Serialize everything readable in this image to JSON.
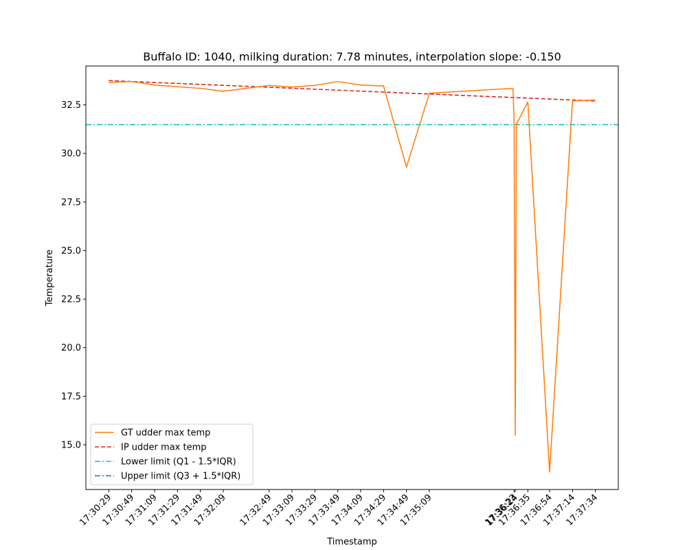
{
  "chart_data": {
    "type": "line",
    "title": "Buffalo ID: 1040, milking duration: 7.78 minutes, interpolation slope: -0.150",
    "xlabel": "Timestamp",
    "ylabel": "Temperature",
    "ylim": [
      12.7,
      34.5
    ],
    "y_ticks": [
      "15.0",
      "17.5",
      "20.0",
      "22.5",
      "25.0",
      "27.5",
      "30.0",
      "32.5"
    ],
    "x_ticks": [
      {
        "t": 0,
        "label": "17:30:29"
      },
      {
        "t": 20,
        "label": "17:30:49"
      },
      {
        "t": 40,
        "label": "17:31:09"
      },
      {
        "t": 60,
        "label": "17:31:29"
      },
      {
        "t": 80,
        "label": "17:31:49"
      },
      {
        "t": 100,
        "label": "17:32:09"
      },
      {
        "t": 140,
        "label": "17:32:49"
      },
      {
        "t": 160,
        "label": "17:33:09"
      },
      {
        "t": 180,
        "label": "17:33:29"
      },
      {
        "t": 200,
        "label": "17:33:49"
      },
      {
        "t": 220,
        "label": "17:34:09"
      },
      {
        "t": 240,
        "label": "17:34:29"
      },
      {
        "t": 260,
        "label": "17:34:49"
      },
      {
        "t": 280,
        "label": "17:35:09"
      },
      {
        "t": 354,
        "label": "17:36:23"
      },
      {
        "t": 355,
        "label": "17:36:24"
      },
      {
        "t": 366,
        "label": "17:36:35"
      },
      {
        "t": 385,
        "label": "17:36:54"
      },
      {
        "t": 405,
        "label": "17:37:14"
      },
      {
        "t": 425,
        "label": "17:37:34"
      }
    ],
    "xlim": [
      -20,
      445
    ],
    "series": [
      {
        "name": "GT udder max temp",
        "color": "#ff7f0e",
        "style": "solid",
        "points": [
          [
            0,
            33.65
          ],
          [
            20,
            33.7
          ],
          [
            40,
            33.52
          ],
          [
            80,
            33.35
          ],
          [
            100,
            33.2
          ],
          [
            140,
            33.5
          ],
          [
            160,
            33.42
          ],
          [
            180,
            33.5
          ],
          [
            200,
            33.7
          ],
          [
            220,
            33.52
          ],
          [
            240,
            33.47
          ],
          [
            260,
            29.3
          ],
          [
            280,
            33.1
          ],
          [
            353,
            33.35
          ],
          [
            354,
            31.7
          ],
          [
            355,
            15.5
          ],
          [
            356,
            31.5
          ],
          [
            366,
            32.65
          ],
          [
            385,
            13.6
          ],
          [
            405,
            32.7
          ],
          [
            425,
            32.75
          ]
        ]
      },
      {
        "name": "IP udder max temp",
        "color": "#d62728",
        "style": "dashed",
        "points": [
          [
            0,
            33.75
          ],
          [
            425,
            32.7
          ]
        ]
      },
      {
        "name": "Lower limit (Q1 - 1.5*IQR)",
        "color": "#17becf",
        "style": "dashdot",
        "y": 31.48
      },
      {
        "name": "Upper limit (Q3 + 1.5*IQR)",
        "color": "#1f77b4",
        "style": "dashdot",
        "y": null
      }
    ],
    "legend": "lower-left",
    "grid": false
  }
}
